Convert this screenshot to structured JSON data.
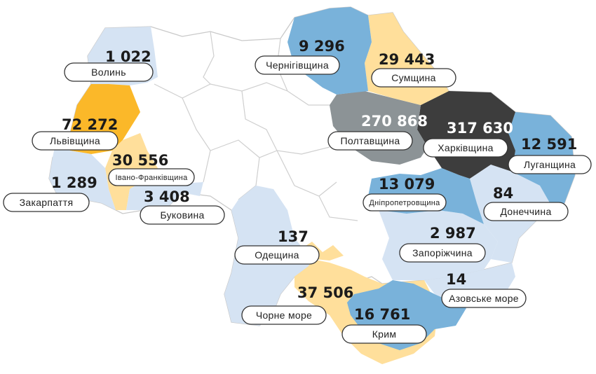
{
  "colors": {
    "very_high": "#3d3d3d",
    "high": "#8c9396",
    "medium": "#fbb829",
    "medium_low": "#ffdf9b",
    "low": "#79b2da",
    "very_low": "#d5e3f3",
    "none": "#ffffff"
  },
  "regions": [
    {
      "key": "volyn",
      "name": "Волинь",
      "value": "1 022"
    },
    {
      "key": "lviv",
      "name": "Львівщина",
      "value": "72 272"
    },
    {
      "key": "ivano",
      "name": "Івано-Франківщина",
      "value": "30 556"
    },
    {
      "key": "zakarpattia",
      "name": "Закарпаття",
      "value": "1 289"
    },
    {
      "key": "bukovyna",
      "name": "Буковина",
      "value": "3 408"
    },
    {
      "key": "odesa",
      "name": "Одещина",
      "value": "137"
    },
    {
      "key": "black_sea",
      "name": "Чорне море",
      "value": "37 506"
    },
    {
      "key": "crimea",
      "name": "Крим",
      "value": "16 761"
    },
    {
      "key": "azov",
      "name": "Азовське море",
      "value": "14"
    },
    {
      "key": "zaporizhzhia",
      "name": "Запоріжчина",
      "value": "2 987"
    },
    {
      "key": "donetsk",
      "name": "Донеччина",
      "value": "84"
    },
    {
      "key": "dnipro",
      "name": "Дніпропетровщина",
      "value": "13 079"
    },
    {
      "key": "luhansk",
      "name": "Луганщина",
      "value": "12 591"
    },
    {
      "key": "kharkiv",
      "name": "Харківщина",
      "value": "317 630"
    },
    {
      "key": "poltava",
      "name": "Полтавщина",
      "value": "270 868"
    },
    {
      "key": "sumy",
      "name": "Сумщина",
      "value": "29 443"
    },
    {
      "key": "chernihiv",
      "name": "Чернігівщина",
      "value": "9 296"
    }
  ]
}
